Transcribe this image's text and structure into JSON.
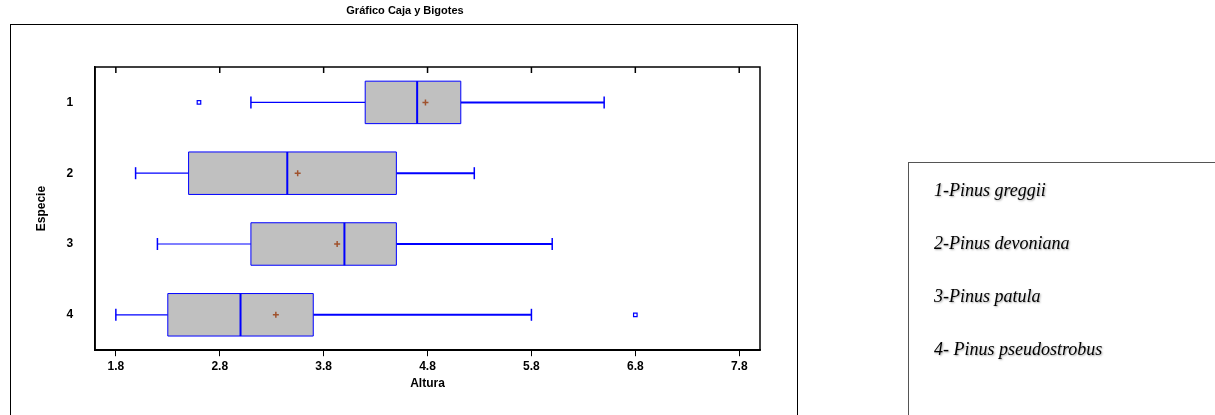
{
  "chart_data": {
    "type": "box",
    "title": "Gráfico Caja y Bigotes",
    "xlabel": "Altura",
    "ylabel": "Especie",
    "orientation": "horizontal",
    "categories": [
      "1",
      "2",
      "3",
      "4"
    ],
    "xlim": [
      1.6,
      8.0
    ],
    "xticks": [
      1.8,
      2.8,
      3.8,
      4.8,
      5.8,
      6.8,
      7.8
    ],
    "grid": false,
    "legend": false,
    "marker": "square",
    "series": [
      {
        "color": "#c0c0c0",
        "boxes": [
          {
            "low": 3.1,
            "q1": 4.2,
            "median": 4.7,
            "q3": 5.12,
            "high": 6.5,
            "mean": 4.78,
            "outliers": [
              2.6
            ]
          },
          {
            "low": 1.99,
            "q1": 2.5,
            "median": 3.45,
            "q3": 4.5,
            "high": 5.25,
            "mean": 3.55
          },
          {
            "low": 2.2,
            "q1": 3.1,
            "median": 4.0,
            "q3": 4.5,
            "high": 6.0,
            "mean": 3.93
          },
          {
            "low": 1.8,
            "q1": 2.3,
            "median": 3.0,
            "q3": 3.7,
            "high": 5.8,
            "mean": 3.34,
            "outliers": [
              6.8
            ]
          }
        ]
      }
    ],
    "annotations": [
      "1-Pinus greggii",
      "2-Pinus devoniana",
      "3-Pinus patula",
      "4- Pinus pseudostrobus"
    ]
  }
}
